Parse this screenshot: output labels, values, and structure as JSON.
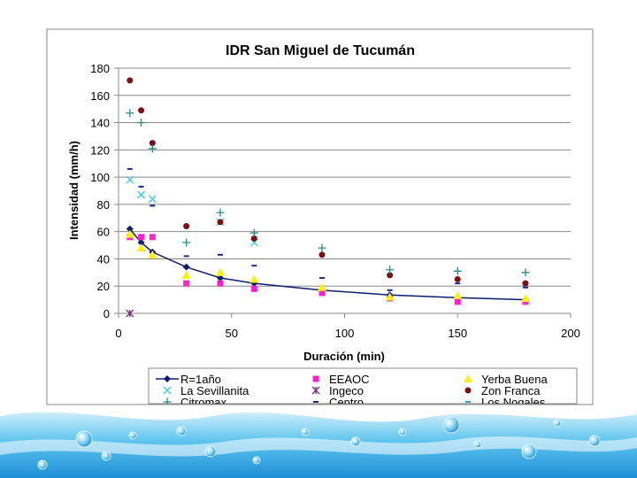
{
  "colors": {
    "plot_area_bg": "#ffffff",
    "chart_border": "#888888",
    "gridline": "#888888",
    "water_light": "#cfeefb",
    "water_mid": "#5cc3ee",
    "water_dark": "#1f8fd6"
  },
  "chart_data": {
    "type": "scatter",
    "title": "IDR San Miguel de Tucumán",
    "xlabel": "Duración (min)",
    "ylabel": "Intensidad (mm/h)",
    "xlim": [
      0,
      200
    ],
    "ylim": [
      0,
      180
    ],
    "xticks": [
      "0",
      "50",
      "100",
      "150",
      "200"
    ],
    "yticks": [
      "0",
      "20",
      "40",
      "60",
      "80",
      "100",
      "120",
      "140",
      "160",
      "180"
    ],
    "grid": "horizontal",
    "legend_position": "bottom",
    "series": [
      {
        "name": "R=1año",
        "marker": "diamond",
        "line": true,
        "color": "#0b1e6e",
        "points": [
          [
            5,
            62
          ],
          [
            10,
            52
          ],
          [
            15,
            45
          ],
          [
            30,
            34
          ],
          [
            45,
            26
          ],
          [
            60,
            22
          ],
          [
            90,
            17
          ],
          [
            120,
            13.5
          ],
          [
            150,
            11.5
          ],
          [
            180,
            10
          ]
        ]
      },
      {
        "name": "EEAOC",
        "marker": "square",
        "line": false,
        "color": "#ff22cc",
        "points": [
          [
            5,
            56
          ],
          [
            10,
            56
          ],
          [
            15,
            56
          ],
          [
            30,
            22
          ],
          [
            45,
            22
          ],
          [
            60,
            18
          ],
          [
            90,
            15
          ],
          [
            120,
            11
          ],
          [
            150,
            8.5
          ],
          [
            180,
            8.5
          ]
        ]
      },
      {
        "name": "Yerba Buena",
        "marker": "triangle",
        "line": false,
        "color": "#ffee11",
        "points": [
          [
            5,
            58
          ],
          [
            10,
            48
          ],
          [
            15,
            43
          ],
          [
            30,
            28
          ],
          [
            45,
            30
          ],
          [
            60,
            25
          ],
          [
            90,
            19
          ],
          [
            120,
            12
          ],
          [
            150,
            13
          ],
          [
            180,
            11
          ]
        ]
      },
      {
        "name": "La Sevillanita",
        "marker": "x",
        "line": false,
        "color": "#33ccee",
        "points": [
          [
            5,
            98
          ],
          [
            10,
            87
          ],
          [
            15,
            84
          ],
          [
            45,
            67
          ],
          [
            60,
            52
          ]
        ]
      },
      {
        "name": "Ingeco",
        "marker": "star",
        "line": false,
        "color": "#7b2a7b",
        "points": [
          [
            5,
            0
          ]
        ]
      },
      {
        "name": "Zon Franca",
        "marker": "circle",
        "line": false,
        "color": "#7b1010",
        "points": [
          [
            5,
            171
          ],
          [
            10,
            149
          ],
          [
            15,
            125
          ],
          [
            30,
            64
          ],
          [
            45,
            67
          ],
          [
            60,
            55
          ],
          [
            90,
            43
          ],
          [
            120,
            28
          ],
          [
            150,
            25
          ],
          [
            180,
            22
          ]
        ]
      },
      {
        "name": "Citromax",
        "marker": "plus",
        "line": false,
        "color": "#2a8a8a",
        "points": [
          [
            5,
            147
          ],
          [
            10,
            140
          ],
          [
            15,
            121
          ],
          [
            30,
            52
          ],
          [
            45,
            74
          ],
          [
            60,
            59
          ],
          [
            90,
            48
          ],
          [
            120,
            32
          ],
          [
            150,
            31
          ],
          [
            180,
            30
          ]
        ]
      },
      {
        "name": "Centro",
        "marker": "dash",
        "line": false,
        "color": "#1a2a8a",
        "points": [
          [
            5,
            106
          ],
          [
            10,
            93
          ],
          [
            15,
            79
          ],
          [
            30,
            42
          ],
          [
            45,
            43
          ],
          [
            60,
            35
          ],
          [
            90,
            26
          ],
          [
            120,
            17
          ],
          [
            150,
            22
          ],
          [
            180,
            19
          ]
        ]
      },
      {
        "name": "Los Nogales",
        "marker": "dash",
        "line": false,
        "color": "#33aacc",
        "points": []
      }
    ]
  }
}
